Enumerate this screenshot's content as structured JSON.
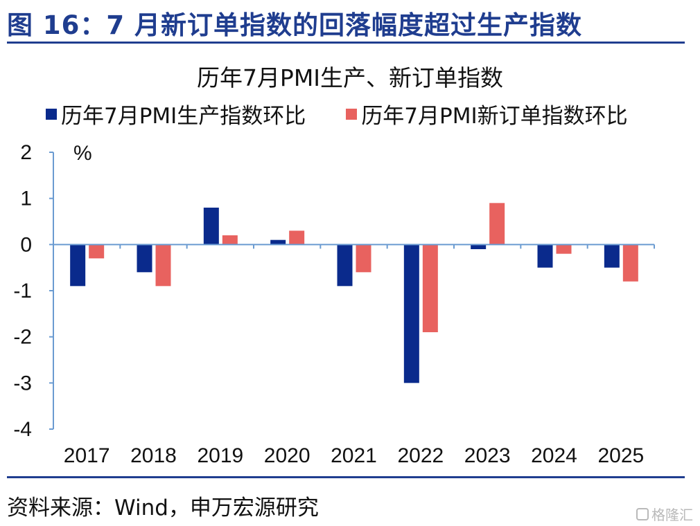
{
  "figure_title": "图 16：7 月新订单指数的回落幅度超过生产指数",
  "source_note": "资料来源：Wind，申万宏源研究",
  "watermark": "格隆汇",
  "chart_data": {
    "type": "bar",
    "title": "历年7月PMI生产、新订单指数",
    "unit_label": "%",
    "categories": [
      "2017",
      "2018",
      "2019",
      "2020",
      "2021",
      "2022",
      "2023",
      "2024",
      "2025"
    ],
    "series": [
      {
        "name": "历年7月PMI生产指数环比",
        "color": "#0a2a8c",
        "values": [
          -0.9,
          -0.6,
          0.8,
          0.1,
          -0.9,
          -3.0,
          -0.1,
          -0.5,
          -0.5
        ]
      },
      {
        "name": "历年7月PMI新订单指数环比",
        "color": "#e8625f",
        "values": [
          -0.3,
          -0.9,
          0.2,
          0.3,
          -0.6,
          -1.9,
          0.9,
          -0.2,
          -0.8
        ]
      }
    ],
    "ylim": [
      -4,
      2
    ],
    "yticks": [
      "2",
      "1",
      "0",
      "-1",
      "-2",
      "-3",
      "-4"
    ],
    "axis_color": "#6a9bd1",
    "legend_position": "top",
    "grid": false
  }
}
